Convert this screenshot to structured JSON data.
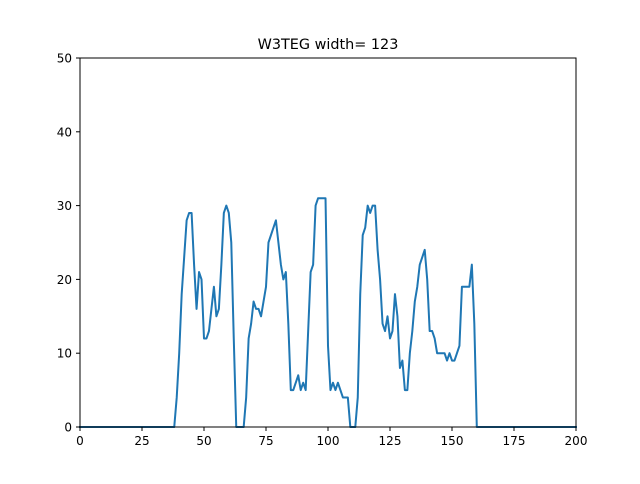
{
  "chart_data": {
    "type": "line",
    "title": "W3TEG width= 123",
    "xlabel": "",
    "ylabel": "",
    "xlim": [
      0,
      200
    ],
    "ylim": [
      0,
      50
    ],
    "xticks": [
      0,
      25,
      50,
      75,
      100,
      125,
      150,
      175,
      200
    ],
    "yticks": [
      0,
      10,
      20,
      30,
      40,
      50
    ],
    "grid": false,
    "series": [
      {
        "color": "#1f77b4",
        "x": [
          0,
          38,
          39,
          40,
          41,
          42,
          43,
          44,
          45,
          46,
          47,
          48,
          49,
          50,
          51,
          52,
          53,
          54,
          55,
          56,
          57,
          58,
          59,
          60,
          61,
          62,
          63,
          64,
          65,
          66,
          67,
          68,
          69,
          70,
          71,
          72,
          73,
          74,
          75,
          76,
          77,
          78,
          79,
          80,
          81,
          82,
          83,
          84,
          85,
          86,
          87,
          88,
          89,
          90,
          91,
          92,
          93,
          94,
          95,
          96,
          97,
          98,
          99,
          100,
          101,
          102,
          103,
          104,
          105,
          106,
          107,
          108,
          109,
          110,
          111,
          112,
          113,
          114,
          115,
          116,
          117,
          118,
          119,
          120,
          121,
          122,
          123,
          124,
          125,
          126,
          127,
          128,
          129,
          130,
          131,
          132,
          133,
          134,
          135,
          136,
          137,
          138,
          139,
          140,
          141,
          142,
          143,
          144,
          145,
          146,
          147,
          148,
          149,
          150,
          151,
          152,
          153,
          154,
          155,
          156,
          157,
          158,
          159,
          160,
          161,
          162,
          200
        ],
        "y": [
          0,
          0,
          4,
          10,
          18,
          23,
          28,
          29,
          29,
          22,
          16,
          21,
          20,
          12,
          12,
          13,
          16,
          19,
          15,
          16,
          22,
          29,
          30,
          29,
          25,
          12,
          0,
          0,
          0,
          0,
          4,
          12,
          14,
          17,
          16,
          16,
          15,
          17,
          19,
          25,
          26,
          27,
          28,
          25,
          22,
          20,
          21,
          14,
          5,
          5,
          6,
          7,
          5,
          6,
          5,
          13,
          21,
          22,
          30,
          31,
          31,
          31,
          31,
          11,
          5,
          6,
          5,
          6,
          5,
          4,
          4,
          4,
          0,
          0,
          0,
          4,
          18,
          26,
          27,
          30,
          29,
          30,
          30,
          24,
          20,
          14,
          13,
          15,
          12,
          13,
          18,
          15,
          8,
          9,
          5,
          5,
          10,
          13,
          17,
          19,
          22,
          23,
          24,
          20,
          13,
          13,
          12,
          10,
          10,
          10,
          10,
          9,
          10,
          9,
          9,
          10,
          11,
          19,
          19,
          19,
          19,
          22,
          14,
          0,
          0,
          0,
          0
        ]
      }
    ]
  }
}
